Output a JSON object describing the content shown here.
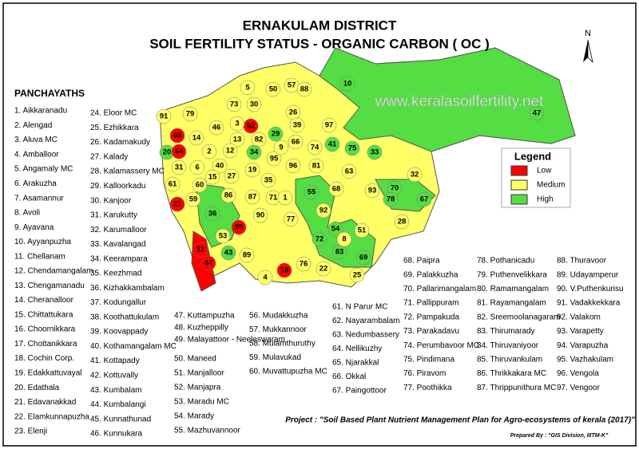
{
  "title": "ERNAKULAM DISTRICT",
  "subtitle": "SOIL FERTILITY STATUS - ORGANIC CARBON ( OC )",
  "north": "N",
  "watermark": "www.keralasoilfertility.net",
  "list_title": "PANCHAYATHS",
  "panchayaths": [
    "1. Aikkaranadu",
    "2. Alengad",
    "3. Aluva MC",
    "4. Amballoor",
    "5. Angamaly MC",
    "6. Arakuzha",
    "7. Asamannur",
    "8. Avoli",
    "9. Ayavana",
    "10. Ayyanpuzha",
    "11. Chellanam",
    "12. Chendamangalam",
    "13. Chengamanadu",
    "14. Cheranalloor",
    "15. Chittattukara",
    "16. Choornikkara",
    "17. Chottanikkara",
    "18. Cochin Corp.",
    "19. Edakkattuvayal",
    "20. Edathala",
    "21. Edavanakkad",
    "22. Elamkunnapuzha",
    "23. Elenji",
    "24. Eloor MC",
    "25. Ezhikkara",
    "26. Kadamakudy",
    "27. Kalady",
    "28. Kalamassery MC",
    "29. Kalloorkadu",
    "30. Kanjoor",
    "31. Karukutty",
    "32. Karumalloor",
    "33. Kavalangad",
    "34. Keerampara",
    "35. Keezhmad",
    "36. Kizhakkambalam",
    "37. Kodungallur",
    "38. Koothattukulam",
    "39. Koovappady",
    "40. Kothamangalam MC",
    "41. Kottapady",
    "42. Kottuvally",
    "43. Kumbalam",
    "44. Kumbalangi",
    "45. Kunnathunad",
    "46. Kunnukara",
    "47. Kuttampuzha",
    "48. Kuzheppilly",
    "49. Malayattoor - Neeleswaram",
    "50. Maneed",
    "51. Manjalloor",
    "52. Manjapra",
    "53. Maradu MC",
    "54. Marady",
    "55. Mazhuvannoor",
    "56. Mudakkuzha",
    "57. Mukkannoor",
    "58. Mulamthuruthy",
    "59. Mulavukad",
    "60. Muvattupuzha MC",
    "61. N Parur MC",
    "62. Nayarambalam",
    "63. Nedumbassery",
    "64. Nellikuzhy",
    "65. Njarakkal",
    "66. Okkal",
    "67. Paingottoor",
    "68. Paipra",
    "69. Palakkuzha",
    "70. Pallarimangalam",
    "71. Pallippuram",
    "72. Pampakuda",
    "73. Parakadavu",
    "74. Perumbavoor MC",
    "75. Pindimana",
    "76. Piravom",
    "77. Poothikka",
    "78. Pothanicadu",
    "79. Puthenvelikkara",
    "80. Ramamangalam",
    "81. Rayamangalam",
    "82. Sreemoolanagaram",
    "83. Thirumarady",
    "84. Thiruvaniyoor",
    "85. Thiruvankulam",
    "86. Thrikkakara MC",
    "87. Thrippunithura MC",
    "88. Thuravoor",
    "89. Udayamperur",
    "90. V.Puthenkurisu",
    "91. Vadakkekkara",
    "92. Valakom",
    "93. Varapetty",
    "94. Varapuzha",
    "95. Vazhakulam",
    "96. Vengola",
    "97. Vengoor"
  ],
  "legend": {
    "title": "Legend",
    "items": [
      {
        "name": "Low",
        "color": "#ff0000"
      },
      {
        "name": "Medium",
        "color": "#ffff66"
      },
      {
        "name": "High",
        "color": "#55dd44"
      }
    ]
  },
  "regions": [
    {
      "label": "10",
      "status": "High"
    },
    {
      "label": "47",
      "status": "High"
    },
    {
      "label": "57",
      "status": "Medium"
    },
    {
      "label": "88",
      "status": "Medium"
    },
    {
      "label": "5",
      "status": "Medium"
    },
    {
      "label": "50",
      "status": "Medium"
    },
    {
      "label": "73",
      "status": "Medium"
    },
    {
      "label": "30",
      "status": "Medium"
    },
    {
      "label": "62",
      "status": "Low"
    },
    {
      "label": "91",
      "status": "Medium"
    },
    {
      "label": "79",
      "status": "Medium"
    },
    {
      "label": "65",
      "status": "Low"
    },
    {
      "label": "46",
      "status": "Medium"
    },
    {
      "label": "3",
      "status": "Medium"
    },
    {
      "label": "13",
      "status": "Medium"
    },
    {
      "label": "82",
      "status": "Medium"
    },
    {
      "label": "29",
      "status": "High"
    },
    {
      "label": "26",
      "status": "Medium"
    },
    {
      "label": "39",
      "status": "Medium"
    },
    {
      "label": "66",
      "status": "Medium"
    },
    {
      "label": "20",
      "status": "High"
    },
    {
      "label": "64",
      "status": "Low"
    },
    {
      "label": "14",
      "status": "Medium"
    },
    {
      "label": "2",
      "status": "Medium"
    },
    {
      "label": "12",
      "status": "Medium"
    },
    {
      "label": "34",
      "status": "High"
    },
    {
      "label": "95",
      "status": "Medium"
    },
    {
      "label": "9",
      "status": "Medium"
    },
    {
      "label": "97",
      "status": "Medium"
    },
    {
      "label": "41",
      "status": "High"
    },
    {
      "label": "75",
      "status": "High"
    },
    {
      "label": "33",
      "status": "High"
    },
    {
      "label": "81",
      "status": "Medium"
    },
    {
      "label": "96",
      "status": "Medium"
    },
    {
      "label": "74",
      "status": "Medium"
    },
    {
      "label": "6",
      "status": "Medium"
    },
    {
      "label": "31",
      "status": "Medium"
    },
    {
      "label": "40",
      "status": "Medium"
    },
    {
      "label": "15",
      "status": "Medium"
    },
    {
      "label": "27",
      "status": "Medium"
    },
    {
      "label": "19",
      "status": "Medium"
    },
    {
      "label": "35",
      "status": "Medium"
    },
    {
      "label": "61",
      "status": "Medium"
    },
    {
      "label": "63",
      "status": "Medium"
    },
    {
      "label": "32",
      "status": "Medium"
    },
    {
      "label": "86",
      "status": "Medium"
    },
    {
      "label": "59",
      "status": "Medium"
    },
    {
      "label": "21",
      "status": "Low"
    },
    {
      "label": "36",
      "status": "High"
    },
    {
      "label": "87",
      "status": "Medium"
    },
    {
      "label": "71",
      "status": "Medium"
    },
    {
      "label": "1",
      "status": "Medium"
    },
    {
      "label": "55",
      "status": "High"
    },
    {
      "label": "68",
      "status": "Medium"
    },
    {
      "label": "93",
      "status": "Medium"
    },
    {
      "label": "70",
      "status": "High"
    },
    {
      "label": "78",
      "status": "High"
    },
    {
      "label": "67",
      "status": "High"
    },
    {
      "label": "90",
      "status": "Medium"
    },
    {
      "label": "92",
      "status": "Medium"
    },
    {
      "label": "77",
      "status": "Medium"
    },
    {
      "label": "85",
      "status": "Low"
    },
    {
      "label": "72",
      "status": "High"
    },
    {
      "label": "54",
      "status": "High"
    },
    {
      "label": "51",
      "status": "Medium"
    },
    {
      "label": "28",
      "status": "Medium"
    },
    {
      "label": "83",
      "status": "High"
    },
    {
      "label": "69",
      "status": "High"
    },
    {
      "label": "53",
      "status": "Medium"
    },
    {
      "label": "43",
      "status": "High"
    },
    {
      "label": "89",
      "status": "Medium"
    },
    {
      "label": "11",
      "status": "Low"
    },
    {
      "label": "44",
      "status": "Low"
    },
    {
      "label": "76",
      "status": "Medium"
    },
    {
      "label": "18",
      "status": "Low"
    },
    {
      "label": "4",
      "status": "Medium"
    },
    {
      "label": "22",
      "status": "Medium"
    },
    {
      "label": "25",
      "status": "Medium"
    },
    {
      "label": "60",
      "status": "Medium"
    },
    {
      "label": "8",
      "status": "Medium"
    }
  ],
  "project": "Project : \"Soil Based Plant Nutrient Management Plan for Agro-ecosystems of kerala (2017)\"",
  "prepared_by": "Prepared By : \"GIS Division, IIITM-K\""
}
